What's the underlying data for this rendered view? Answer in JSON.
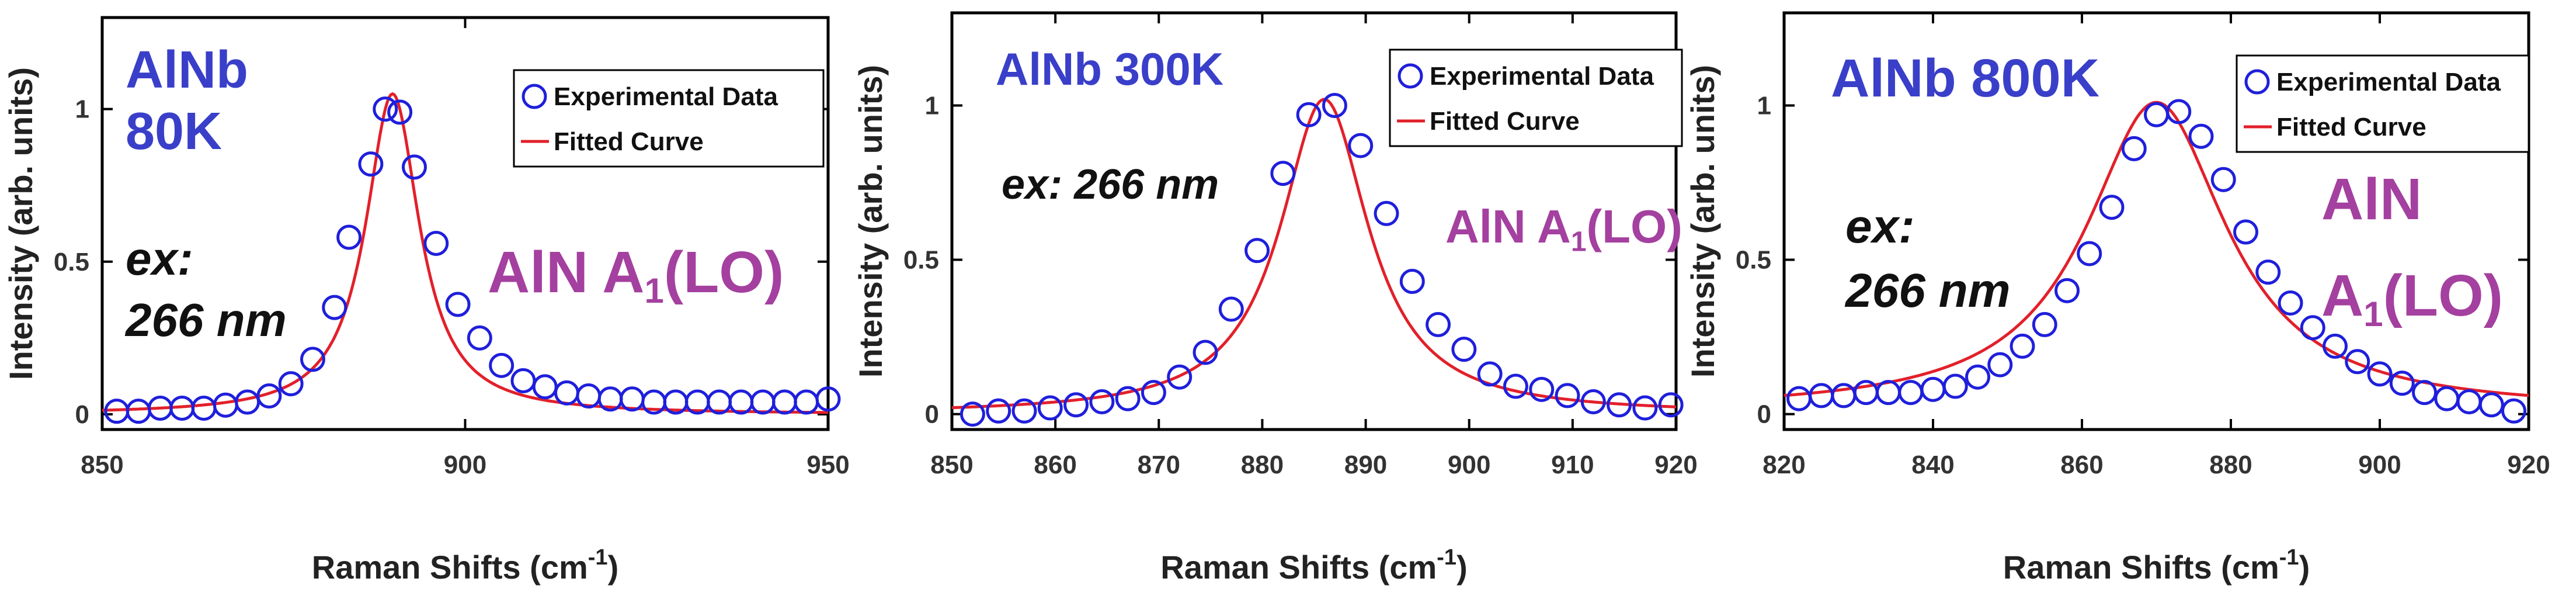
{
  "chart_data": [
    {
      "type": "scatter",
      "title": "AlNb 80K",
      "title_lines": [
        "AlNb",
        "80K"
      ],
      "excitation_lines": [
        "ex:",
        "266 nm"
      ],
      "mode_label": "AlN A1(LO)",
      "xlabel": "Raman Shifts (cm-1)",
      "ylabel": "Intensity (arb. units)",
      "xlim": [
        850,
        950
      ],
      "ylim": [
        -0.05,
        1.3
      ],
      "xticks": [
        850,
        900,
        950
      ],
      "yticks": [
        0,
        0.5,
        1
      ],
      "ytick_labels": [
        "0",
        "0.5",
        "1"
      ],
      "legend": [
        "Experimental Data",
        "Fitted Curve"
      ],
      "fit": {
        "center": 890,
        "hwhm": 4.5,
        "amplitude": 1.05,
        "baseline": 0.0
      },
      "series": [
        {
          "name": "Experimental Data",
          "x": [
            852,
            855,
            858,
            861,
            864,
            867,
            870,
            873,
            876,
            879,
            882,
            884,
            887,
            889,
            891,
            893,
            896,
            899,
            902,
            905,
            908,
            911,
            914,
            917,
            920,
            923,
            926,
            929,
            932,
            935,
            938,
            941,
            944,
            947,
            950
          ],
          "y": [
            0.01,
            0.01,
            0.02,
            0.02,
            0.02,
            0.03,
            0.04,
            0.06,
            0.1,
            0.18,
            0.35,
            0.58,
            0.82,
            1.0,
            0.99,
            0.81,
            0.56,
            0.36,
            0.25,
            0.16,
            0.11,
            0.09,
            0.07,
            0.06,
            0.05,
            0.05,
            0.04,
            0.04,
            0.04,
            0.04,
            0.04,
            0.04,
            0.04,
            0.04,
            0.05
          ]
        },
        {
          "name": "Fitted Curve",
          "style": "line"
        }
      ]
    },
    {
      "type": "scatter",
      "title": "AlNb 300K",
      "title_lines": [
        "AlNb 300K"
      ],
      "excitation_lines": [
        "ex: 266 nm"
      ],
      "mode_label": "AlN A1(LO)",
      "xlabel": "Raman Shifts (cm-1)",
      "ylabel": "Intensity (arb. units)",
      "xlim": [
        850,
        920
      ],
      "ylim": [
        -0.05,
        1.3
      ],
      "xticks": [
        850,
        860,
        870,
        880,
        890,
        900,
        910,
        920
      ],
      "yticks": [
        0,
        0.5,
        1
      ],
      "ytick_labels": [
        "0",
        "0.5",
        "1"
      ],
      "legend": [
        "Experimental Data",
        "Fitted Curve"
      ],
      "fit": {
        "center": 886,
        "hwhm": 5.2,
        "amplitude": 1.02,
        "baseline": 0.0
      },
      "series": [
        {
          "name": "Experimental Data",
          "x": [
            852,
            854.5,
            857,
            859.5,
            862,
            864.5,
            867,
            869.5,
            872,
            874.5,
            877,
            879.5,
            882,
            884.5,
            887,
            889.5,
            892,
            894.5,
            897,
            899.5,
            902,
            904.5,
            907,
            909.5,
            912,
            914.5,
            917,
            919.5
          ],
          "y": [
            0.0,
            0.01,
            0.01,
            0.02,
            0.03,
            0.04,
            0.05,
            0.07,
            0.12,
            0.2,
            0.34,
            0.53,
            0.78,
            0.97,
            1.0,
            0.87,
            0.65,
            0.43,
            0.29,
            0.21,
            0.13,
            0.09,
            0.08,
            0.06,
            0.04,
            0.03,
            0.02,
            0.03
          ]
        },
        {
          "name": "Fitted Curve",
          "style": "line"
        }
      ]
    },
    {
      "type": "scatter",
      "title": "AlNb 800K",
      "title_lines": [
        "AlNb 800K"
      ],
      "excitation_lines": [
        "ex:",
        "266 nm"
      ],
      "mode_label": "AlN A1(LO)",
      "mode_label_lines": [
        "AlN",
        "A1(LO)"
      ],
      "xlabel": "Raman Shifts (cm-1)",
      "ylabel": "Intensity (arb. units)",
      "xlim": [
        820,
        920
      ],
      "ylim": [
        -0.05,
        1.3
      ],
      "xticks": [
        820,
        840,
        860,
        880,
        900,
        920
      ],
      "yticks": [
        0,
        0.5,
        1
      ],
      "ytick_labels": [
        "0",
        "0.5",
        "1"
      ],
      "legend": [
        "Experimental Data",
        "Fitted Curve"
      ],
      "fit": {
        "center": 870,
        "hwhm": 11.5,
        "amplitude": 1.0,
        "baseline": 0.01
      },
      "series": [
        {
          "name": "Experimental Data",
          "x": [
            822,
            825,
            828,
            831,
            834,
            837,
            840,
            843,
            846,
            849,
            852,
            855,
            858,
            861,
            864,
            867,
            870,
            873,
            876,
            879,
            882,
            885,
            888,
            891,
            894,
            897,
            900,
            903,
            906,
            909,
            912,
            915,
            918
          ],
          "y": [
            0.05,
            0.06,
            0.06,
            0.07,
            0.07,
            0.07,
            0.08,
            0.09,
            0.12,
            0.16,
            0.22,
            0.29,
            0.4,
            0.52,
            0.67,
            0.86,
            0.97,
            0.98,
            0.9,
            0.76,
            0.59,
            0.46,
            0.36,
            0.28,
            0.22,
            0.17,
            0.13,
            0.1,
            0.07,
            0.05,
            0.04,
            0.03,
            0.01
          ]
        },
        {
          "name": "Fitted Curve",
          "style": "line"
        }
      ]
    }
  ],
  "colors": {
    "marker": "#1f1fdc",
    "fit": "#e2202a",
    "axis": "#000000",
    "sample": "#3a3fc9",
    "mode": "#a4409f"
  },
  "mode_subscript": "1",
  "unit_superscript": "-1"
}
